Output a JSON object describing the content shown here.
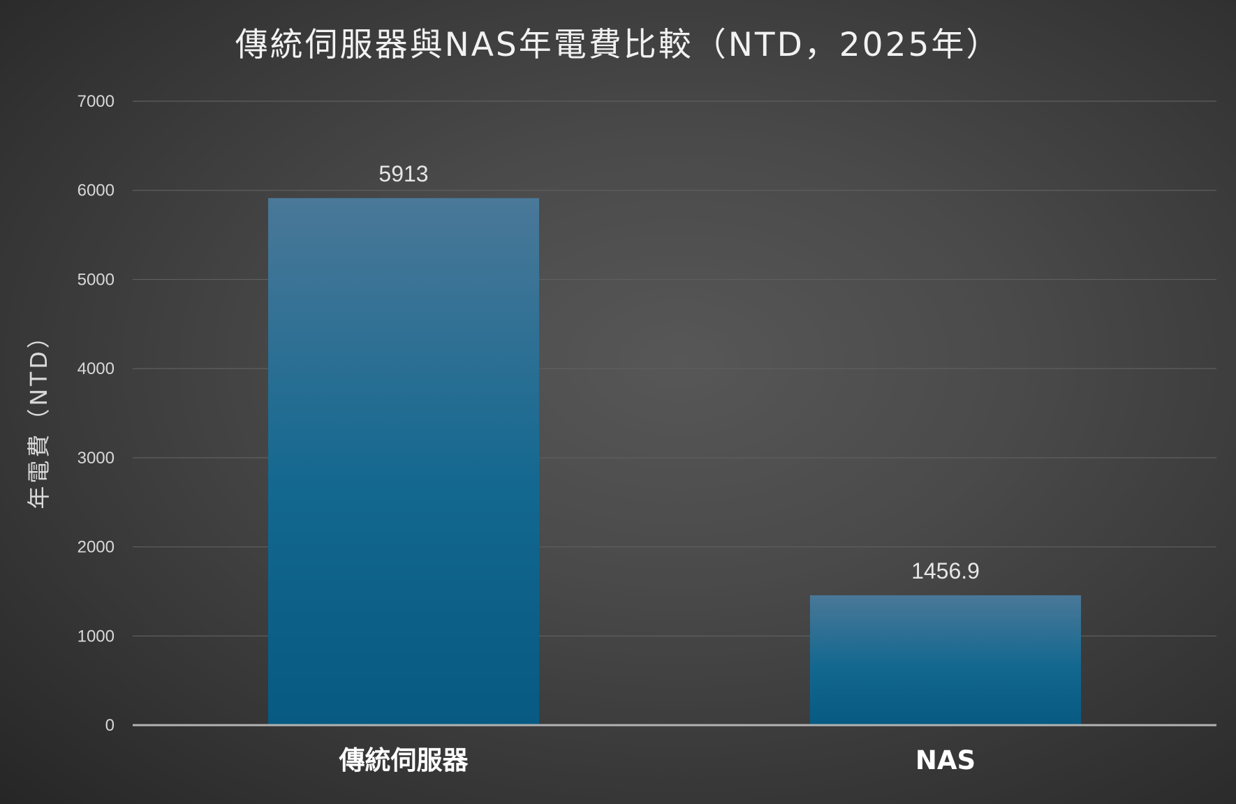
{
  "chart_data": {
    "type": "bar",
    "title": "傳統伺服器與NAS年電費比較（NTD，2025年）",
    "xlabel": "",
    "ylabel": "年電費（NTD）",
    "categories": [
      "傳統伺服器",
      "NAS"
    ],
    "values": [
      5913,
      1456.9
    ],
    "value_labels": [
      "5913",
      "1456.9"
    ],
    "ylim": [
      0,
      7000
    ],
    "yticks": [
      0,
      1000,
      2000,
      3000,
      4000,
      5000,
      6000,
      7000
    ],
    "grid": true,
    "legend": "none",
    "colors": {
      "bar_top": "#4a7898",
      "bar_bottom": "#075a82",
      "background": "#4a4a4a",
      "gridline": "#5f5f5f",
      "axis": "#b3b3b3"
    }
  }
}
